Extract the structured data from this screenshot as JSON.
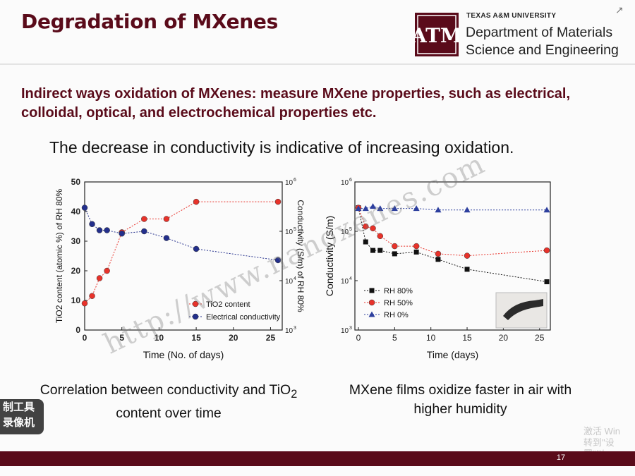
{
  "slide": {
    "title": "Degradation of MXenes",
    "university": "TEXAS A&M UNIVERSITY",
    "department_line1": "Department of Materials",
    "department_line2": "Science and Engineering",
    "subtitle": "Indirect ways oxidation of MXenes: measure MXene properties, such as electrical, colloidal, optical, and electrochemical properties etc.",
    "lead": "The decrease in conductivity is indicative of increasing oxidation.",
    "caption_left_1": "Correlation between conductivity and TiO",
    "caption_left_sub": "2",
    "caption_left_2": "content over time",
    "caption_right": "MXene films oxidize faster in air with higher humidity",
    "page_number": "17",
    "logo_text": "ATM",
    "watermark_left_1": "制工具",
    "watermark_left_2": "录像机",
    "watermark_windows_1": "激活 Win",
    "watermark_windows_2": "转到\"设置\"以",
    "watermark_url": "http://www.nanoxenes.com",
    "colors": {
      "maroon": "#5a0b1a",
      "red": "#e8322a",
      "navy": "#232f8c",
      "blue": "#2d3f9e",
      "black": "#111111"
    }
  },
  "chart_data": [
    {
      "type": "line",
      "xlabel": "Time (No. of days)",
      "ylabel": "TiO2 content (atomic %) of RH 80%",
      "y2label": "Conductivity (S/m) of RH 80%",
      "xlim": [
        0,
        26
      ],
      "xticks": [
        "0",
        "5",
        "10",
        "15",
        "20",
        "25"
      ],
      "ylim": [
        0,
        50
      ],
      "yticks": [
        "0",
        "10",
        "20",
        "30",
        "40",
        "50"
      ],
      "y2scale": "log",
      "y2lim": [
        1000,
        1000000
      ],
      "y2ticks": [
        "10",
        "10",
        "10",
        "10"
      ],
      "y2tick_exp": [
        "3",
        "4",
        "5",
        "6"
      ],
      "legend_position": "bottom-right",
      "series": [
        {
          "name": "TiO2 content",
          "axis": "left",
          "marker": "circle",
          "color": "#e8322a",
          "x": [
            0,
            1,
            2,
            3,
            5,
            8,
            11,
            15,
            26
          ],
          "y": [
            9,
            11.5,
            17.5,
            20,
            33,
            37.5,
            37.5,
            43.3,
            43.3
          ]
        },
        {
          "name": "Electrical conductivity",
          "axis": "right",
          "marker": "circle",
          "color": "#232f8c",
          "x": [
            0,
            1,
            2,
            3,
            5,
            8,
            11,
            15,
            26
          ],
          "y": [
            300000,
            140000,
            105000,
            105000,
            90000,
            100000,
            73000,
            44000,
            26000
          ]
        }
      ]
    },
    {
      "type": "line",
      "xlabel": "Time (days)",
      "ylabel": "Conductivity (S/m)",
      "xlim": [
        0,
        26
      ],
      "xticks": [
        "0",
        "5",
        "10",
        "15",
        "20",
        "25"
      ],
      "yscale": "log",
      "ylim": [
        1000,
        1000000
      ],
      "yticks": [
        "10",
        "10",
        "10",
        "10"
      ],
      "ytick_exp": [
        "3",
        "4",
        "5",
        "6"
      ],
      "legend_position": "bottom-left",
      "series": [
        {
          "name": "RH 80%",
          "marker": "square",
          "color": "#111111",
          "x": [
            0,
            1,
            2,
            3,
            5,
            8,
            11,
            15,
            26
          ],
          "y": [
            300000,
            61000,
            41000,
            41000,
            35000,
            38000,
            27000,
            17000,
            9500
          ]
        },
        {
          "name": "RH 50%",
          "marker": "circle",
          "color": "#e8322a",
          "x": [
            0,
            1,
            2,
            3,
            5,
            8,
            11,
            15,
            26
          ],
          "y": [
            300000,
            125000,
            115000,
            80000,
            50000,
            50000,
            35000,
            32000,
            41000
          ]
        },
        {
          "name": "RH 0%",
          "marker": "triangle",
          "color": "#2d3f9e",
          "x": [
            0,
            1,
            2,
            3,
            5,
            8,
            11,
            15,
            26
          ],
          "y": [
            290000,
            290000,
            320000,
            290000,
            290000,
            290000,
            270000,
            270000,
            270000
          ]
        }
      ]
    }
  ]
}
